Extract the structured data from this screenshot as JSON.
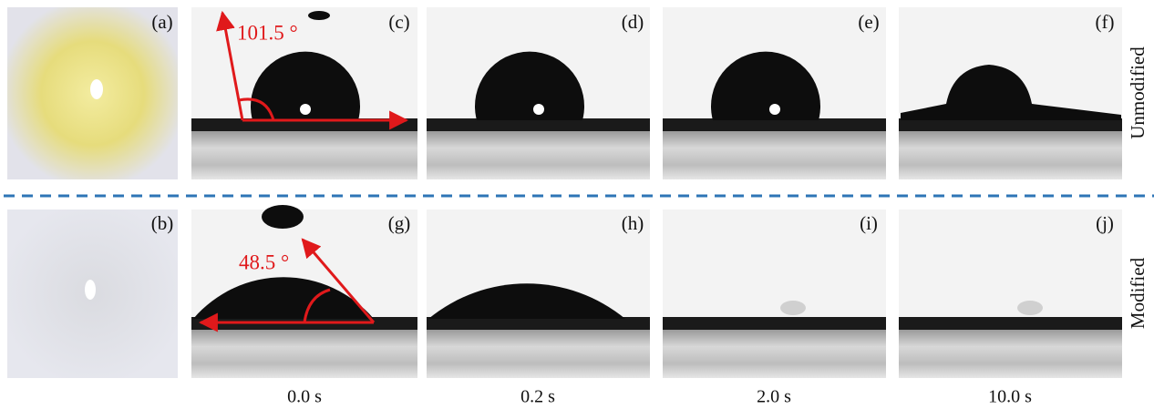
{
  "panel_labels": [
    "(a)",
    "(b)",
    "(c)",
    "(d)",
    "(e)",
    "(f)",
    "(g)",
    "(h)",
    "(i)",
    "(j)"
  ],
  "angles": [
    "101.5 °",
    "48.5 °"
  ],
  "row_labels": [
    "Unmodified",
    "Modified"
  ],
  "times": [
    "0.0 s",
    "0.2 s",
    "2.0 s",
    "10.0 s"
  ]
}
